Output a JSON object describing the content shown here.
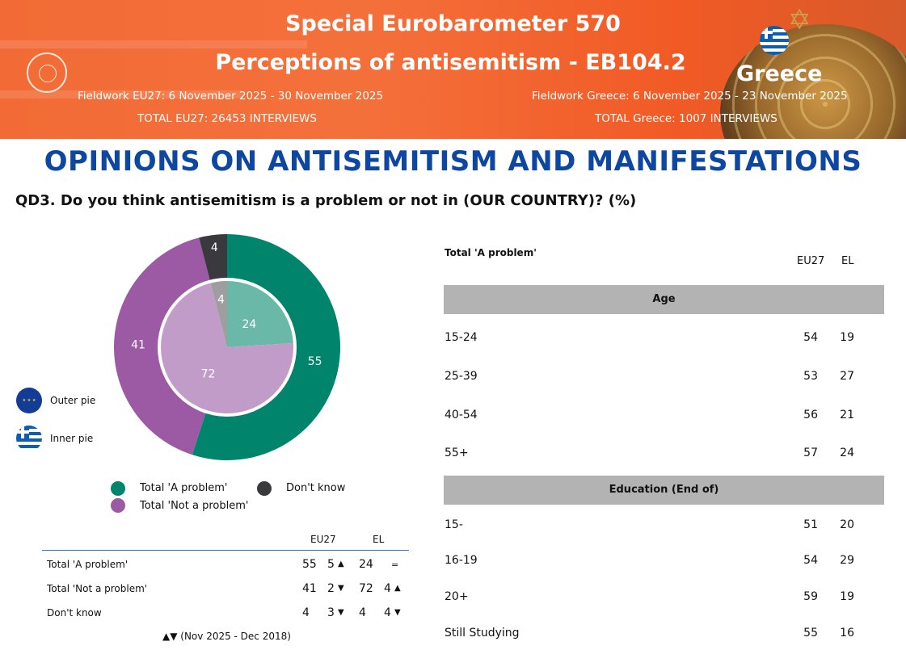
{
  "banner": {
    "title1": "Special Eurobarometer 570",
    "title2": "Perceptions of antisemitism - EB104.2",
    "country": "Greece",
    "fieldwork_eu": "Fieldwork EU27: 6 November 2025 - 30 November 2025",
    "total_eu": "TOTAL EU27: 26453 INTERVIEWS",
    "fieldwork_country": "Fieldwork Greece: 6 November 2025 - 23 November 2025",
    "total_country": "TOTAL Greece: 1007 INTERVIEWS"
  },
  "section_title": "OPINIONS ON ANTISEMITISM AND MANIFESTATIONS",
  "question": "QD3. Do you think antisemitism is a problem or not in (OUR COUNTRY)? (%)",
  "pie_legend": {
    "outer": "Outer pie",
    "inner": "Inner pie"
  },
  "chart_data": {
    "type": "pie",
    "series": [
      {
        "name": "Outer pie",
        "categories": [
          "Total 'A problem'",
          "Total 'Not a problem'",
          "Don't know"
        ],
        "values": [
          55,
          41,
          4
        ]
      },
      {
        "name": "Inner pie",
        "categories": [
          "Total 'A problem'",
          "Total 'Not a problem'",
          "Don't know"
        ],
        "values": [
          24,
          72,
          4
        ]
      }
    ],
    "legend": [
      "Total 'A problem'",
      "Total 'Not a problem'",
      "Don't know"
    ],
    "colors": {
      "outer": [
        "#00846b",
        "#9b5aa3",
        "#3a3a3e"
      ],
      "inner": [
        "#6ab9a8",
        "#c19cc8",
        "#9e9e9e"
      ]
    }
  },
  "trend_table": {
    "col_eu": "EU27",
    "col_el": "EL",
    "rows": [
      {
        "label": "Total 'A problem'",
        "eu": "55",
        "eu_change": "5",
        "eu_dir": "▲",
        "el": "24",
        "el_change": "=",
        "el_dir": ""
      },
      {
        "label": "Total 'Not a problem'",
        "eu": "41",
        "eu_change": "2",
        "eu_dir": "▼",
        "el": "72",
        "el_change": "4",
        "el_dir": "▲"
      },
      {
        "label": "Don't know",
        "eu": "4",
        "eu_change": "3",
        "eu_dir": "▼",
        "el": "4",
        "el_change": "4",
        "el_dir": "▼"
      }
    ],
    "footnote": "▲▼ (Nov 2025 - Dec 2018)"
  },
  "breakdown": {
    "header": "Total 'A problem'",
    "col_eu": "EU27",
    "col_el": "EL",
    "age_label": "Age",
    "age_rows": [
      {
        "label": "15-24",
        "eu": "54",
        "el": "19"
      },
      {
        "label": "25-39",
        "eu": "53",
        "el": "27"
      },
      {
        "label": "40-54",
        "eu": "56",
        "el": "21"
      },
      {
        "label": "55+",
        "eu": "57",
        "el": "24"
      }
    ],
    "edu_label": "Education (End of)",
    "edu_rows": [
      {
        "label": "15-",
        "eu": "51",
        "el": "20"
      },
      {
        "label": "16-19",
        "eu": "54",
        "el": "29"
      },
      {
        "label": "20+",
        "eu": "59",
        "el": "19"
      },
      {
        "label": "Still Studying",
        "eu": "55",
        "el": "16"
      }
    ]
  }
}
